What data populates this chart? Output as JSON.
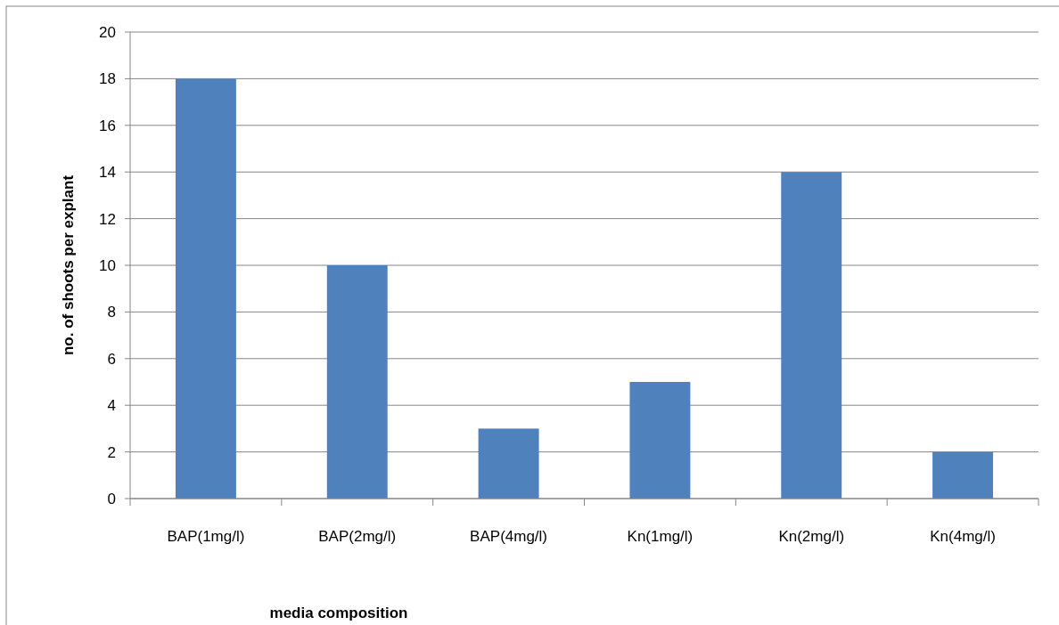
{
  "chart_data": {
    "type": "bar",
    "xlabel": "media composition",
    "ylabel": "no. of shoots per explant",
    "categories": [
      "BAP(1mg/l)",
      "BAP(2mg/l)",
      "BAP(4mg/l)",
      "Kn(1mg/l)",
      "Kn(2mg/l)",
      "Kn(4mg/l)"
    ],
    "values": [
      18,
      10,
      3,
      5,
      14,
      2
    ],
    "color": "#4f81bd",
    "ylim": [
      0,
      20
    ],
    "yticks": [
      0,
      2,
      4,
      6,
      8,
      10,
      12,
      14,
      16,
      18,
      20
    ],
    "grid": "y"
  }
}
